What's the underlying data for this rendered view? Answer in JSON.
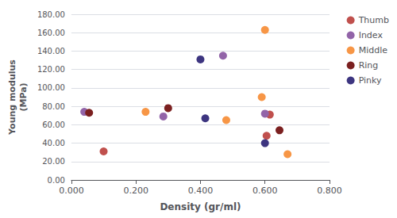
{
  "chart_data": {
    "type": "scatter",
    "xlabel": "Density (gr/ml)",
    "ylabel": "Young modulus\n(MPa)",
    "xlim": [
      0.0,
      0.8
    ],
    "ylim": [
      0.0,
      180.0
    ],
    "xticks": [
      {
        "value": 0.0,
        "label": "0.000"
      },
      {
        "value": 0.2,
        "label": "0.200"
      },
      {
        "value": 0.4,
        "label": "0.400"
      },
      {
        "value": 0.6,
        "label": "0.600"
      },
      {
        "value": 0.8,
        "label": "0.800"
      }
    ],
    "yticks": [
      {
        "value": 0.0,
        "label": "0.00"
      },
      {
        "value": 20.0,
        "label": "20.00"
      },
      {
        "value": 40.0,
        "label": "40.00"
      },
      {
        "value": 60.0,
        "label": "60.00"
      },
      {
        "value": 80.0,
        "label": "80.00"
      },
      {
        "value": 100.0,
        "label": "100.00"
      },
      {
        "value": 120.0,
        "label": "120.00"
      },
      {
        "value": 140.0,
        "label": "140.00"
      },
      {
        "value": 160.0,
        "label": "160.00"
      },
      {
        "value": 180.0,
        "label": "180.00"
      }
    ],
    "grid": true,
    "legend": "right",
    "series": [
      {
        "name": "Thumb",
        "color": "#C0504D",
        "x": [
          0.1,
          0.605,
          0.615
        ],
        "values": [
          31.0,
          48.0,
          71.0
        ]
      },
      {
        "name": "Index",
        "color": "#9264A8",
        "x": [
          0.04,
          0.285,
          0.47,
          0.6
        ],
        "values": [
          74.0,
          69.0,
          135.0,
          72.0
        ]
      },
      {
        "name": "Middle",
        "color": "#F79646",
        "x": [
          0.23,
          0.48,
          0.59,
          0.6,
          0.67
        ],
        "values": [
          74.0,
          65.0,
          90.0,
          163.0,
          28.0
        ]
      },
      {
        "name": "Ring",
        "color": "#7B2020",
        "x": [
          0.055,
          0.3,
          0.645
        ],
        "values": [
          73.0,
          78.0,
          54.0
        ]
      },
      {
        "name": "Pinky",
        "color": "#3D3580",
        "x": [
          0.4,
          0.415,
          0.6
        ],
        "values": [
          131.0,
          67.0,
          40.0
        ]
      }
    ]
  }
}
